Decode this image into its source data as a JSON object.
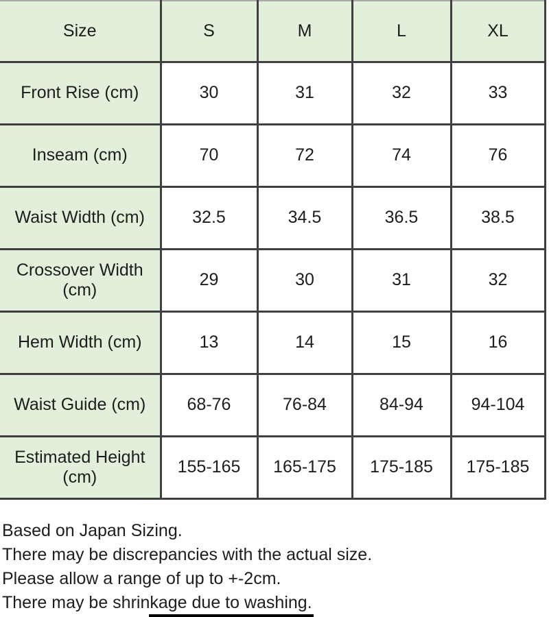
{
  "size_chart": {
    "columns": [
      "Size",
      "S",
      "M",
      "L",
      "XL"
    ],
    "rows": [
      {
        "label": "Front Rise (cm)",
        "values": [
          "30",
          "31",
          "32",
          "33"
        ]
      },
      {
        "label": "Inseam (cm)",
        "values": [
          "70",
          "72",
          "74",
          "76"
        ]
      },
      {
        "label": "Waist Width (cm)",
        "values": [
          "32.5",
          "34.5",
          "36.5",
          "38.5"
        ]
      },
      {
        "label": "Crossover Width\n(cm)",
        "values": [
          "29",
          "30",
          "31",
          "32"
        ]
      },
      {
        "label": "Hem Width (cm)",
        "values": [
          "13",
          "14",
          "15",
          "16"
        ]
      },
      {
        "label": "Waist Guide (cm)",
        "values": [
          "68-76",
          "76-84",
          "84-94",
          "94-104"
        ]
      },
      {
        "label": "Estimated Height\n(cm)",
        "values": [
          "155-165",
          "165-175",
          "175-185",
          "175-185"
        ]
      }
    ],
    "colors": {
      "header_bg": "#e2efda",
      "label_bg": "#e2efda",
      "cell_bg": "#ffffff",
      "grid_border": "#3f3f3f",
      "top_edge": "#a9a9a9",
      "text": "#1d1d1d",
      "bottom_bar": "#000000"
    }
  },
  "notes": {
    "lines": [
      "Based on Japan Sizing.",
      "There may be discrepancies with the actual size.",
      "Please allow a range of up to +-2cm.",
      "There may be shrinkage due to washing."
    ]
  }
}
